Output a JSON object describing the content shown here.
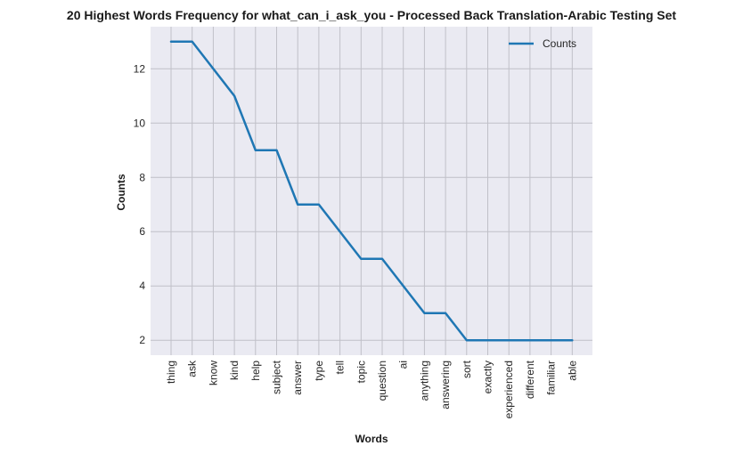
{
  "chart_data": {
    "type": "line",
    "title": "20 Highest Words Frequency for what_can_i_ask_you - Processed Back Translation-Arabic Testing Set",
    "xlabel": "Words",
    "ylabel": "Counts",
    "categories": [
      "thing",
      "ask",
      "know",
      "kind",
      "help",
      "subject",
      "answer",
      "type",
      "tell",
      "topic",
      "question",
      "ai",
      "anything",
      "answering",
      "sort",
      "exactly",
      "experienced",
      "different",
      "familiar",
      "able"
    ],
    "series": [
      {
        "name": "Counts",
        "values": [
          13,
          13,
          12,
          11,
          9,
          9,
          7,
          7,
          6,
          5,
          5,
          4,
          3,
          3,
          2,
          2,
          2,
          2,
          2,
          2
        ],
        "color": "#1f77b4"
      }
    ],
    "ylim": [
      1.45,
      13.55
    ],
    "yticks": [
      2,
      4,
      6,
      8,
      10,
      12
    ],
    "grid": true,
    "legend": "top-right",
    "background": "#eaeaf2",
    "grid_color": "#c0c0c8"
  }
}
